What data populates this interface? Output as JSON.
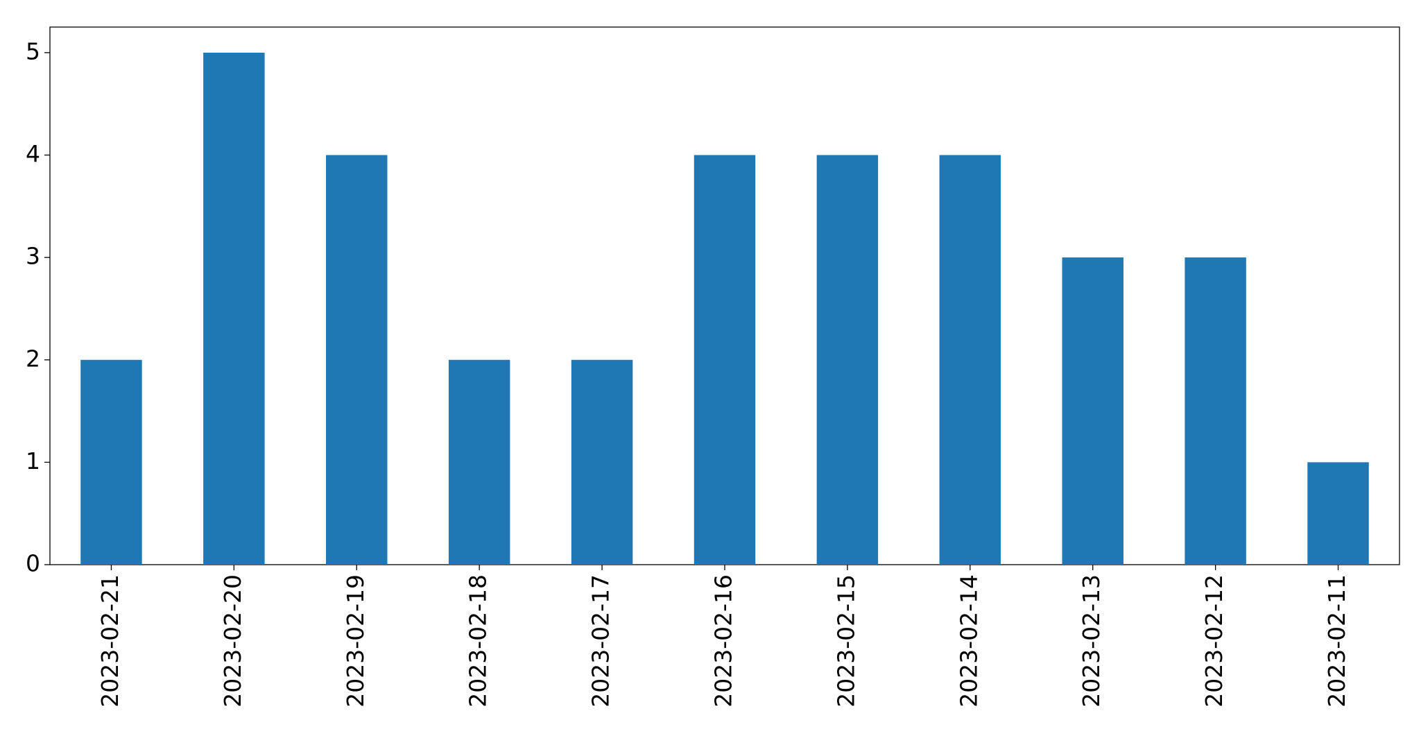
{
  "chart_data": {
    "type": "bar",
    "categories": [
      "2023-02-21",
      "2023-02-20",
      "2023-02-19",
      "2023-02-18",
      "2023-02-17",
      "2023-02-16",
      "2023-02-15",
      "2023-02-14",
      "2023-02-13",
      "2023-02-12",
      "2023-02-11"
    ],
    "values": [
      2,
      5,
      4,
      2,
      2,
      4,
      4,
      4,
      3,
      3,
      1
    ],
    "color": "#1f77b4",
    "ylim": [
      0,
      5.25
    ],
    "yticks": [
      0,
      1,
      2,
      3,
      4,
      5
    ],
    "grid": false
  }
}
